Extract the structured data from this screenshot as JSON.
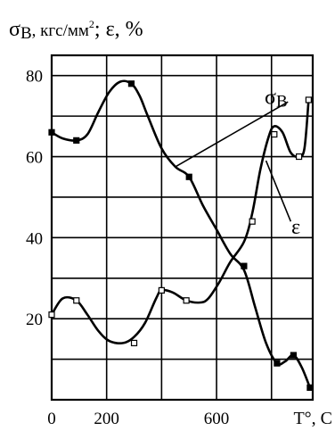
{
  "chart_data": {
    "type": "line",
    "ylabel": {
      "sigma": "σ",
      "sigma_sub": "B",
      "units": ", кгс/мм",
      "units_sup": "2",
      "rest": "; ε, %"
    },
    "xlabel": "T°, C",
    "xlim": [
      0,
      950
    ],
    "ylim": [
      0,
      85
    ],
    "x_ticks": [
      {
        "value": 0,
        "label": "0"
      },
      {
        "value": 200,
        "label": "200"
      },
      {
        "value": 600,
        "label": "600"
      }
    ],
    "y_ticks": [
      {
        "value": 20,
        "label": "20"
      },
      {
        "value": 40,
        "label": "40"
      },
      {
        "value": 60,
        "label": "60"
      },
      {
        "value": 80,
        "label": "80"
      }
    ],
    "x_grid": [
      200,
      400,
      600,
      800
    ],
    "y_grid": [
      10,
      20,
      30,
      40,
      50,
      60,
      70,
      80
    ],
    "grid": true,
    "series": [
      {
        "name": "σ",
        "name_sub": "B",
        "marker": "filled-square",
        "curve": [
          [
            0,
            66
          ],
          [
            40,
            64.5
          ],
          [
            90,
            64
          ],
          [
            130,
            65.5
          ],
          [
            170,
            71
          ],
          [
            210,
            76
          ],
          [
            250,
            78.5
          ],
          [
            290,
            78
          ],
          [
            320,
            75
          ],
          [
            350,
            70
          ],
          [
            400,
            62
          ],
          [
            450,
            57.5
          ],
          [
            500,
            55
          ],
          [
            550,
            48
          ],
          [
            600,
            42
          ],
          [
            650,
            36
          ],
          [
            700,
            32
          ],
          [
            740,
            23
          ],
          [
            780,
            14
          ],
          [
            820,
            9
          ],
          [
            850,
            9.5
          ],
          [
            880,
            11
          ],
          [
            910,
            8
          ],
          [
            940,
            3
          ]
        ],
        "points": [
          [
            0,
            66
          ],
          [
            90,
            64
          ],
          [
            290,
            78
          ],
          [
            500,
            55
          ],
          [
            700,
            33
          ],
          [
            820,
            9
          ],
          [
            880,
            11
          ],
          [
            940,
            3
          ]
        ]
      },
      {
        "name": "ε",
        "marker": "open-square",
        "curve": [
          [
            0,
            21
          ],
          [
            40,
            25
          ],
          [
            90,
            24.5
          ],
          [
            130,
            21
          ],
          [
            170,
            17
          ],
          [
            210,
            14.5
          ],
          [
            260,
            14
          ],
          [
            300,
            15.5
          ],
          [
            340,
            19
          ],
          [
            380,
            25
          ],
          [
            400,
            27
          ],
          [
            440,
            26.5
          ],
          [
            490,
            24.5
          ],
          [
            540,
            24
          ],
          [
            570,
            25
          ],
          [
            610,
            29
          ],
          [
            650,
            34
          ],
          [
            700,
            39
          ],
          [
            730,
            46
          ],
          [
            760,
            57
          ],
          [
            790,
            65
          ],
          [
            810,
            67.5
          ],
          [
            840,
            66
          ],
          [
            870,
            61
          ],
          [
            900,
            60
          ],
          [
            920,
            62
          ],
          [
            935,
            74
          ]
        ],
        "points": [
          [
            0,
            21
          ],
          [
            90,
            24.5
          ],
          [
            300,
            14
          ],
          [
            400,
            27
          ],
          [
            490,
            24.5
          ],
          [
            730,
            44
          ],
          [
            810,
            65.5
          ],
          [
            900,
            60
          ],
          [
            935,
            74
          ]
        ]
      }
    ]
  }
}
